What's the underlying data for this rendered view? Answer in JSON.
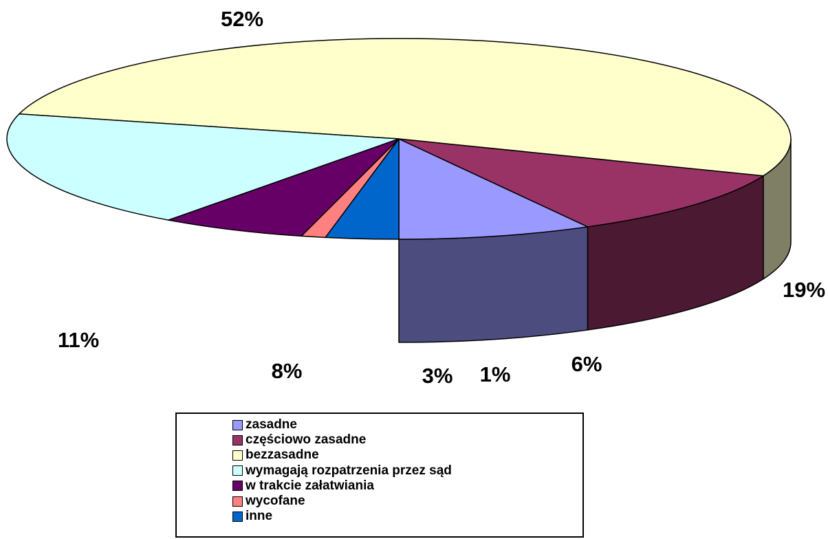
{
  "chart_data": {
    "type": "pie",
    "style": "3d",
    "start_angle_deg": 180,
    "slices": [
      {
        "label": "zasadne",
        "value": 8,
        "value_label": "8%",
        "color": "#9999FF",
        "side_color": "#4C4C7F"
      },
      {
        "label": "częściowo zasadne",
        "value": 11,
        "value_label": "11%",
        "color": "#993366",
        "side_color": "#4C1933"
      },
      {
        "label": "bezzasadne",
        "value": 52,
        "value_label": "52%",
        "color": "#FFFFCC",
        "side_color": "#7F7F66"
      },
      {
        "label": "wymagają rozpatrzenia przez sąd",
        "value": 19,
        "value_label": "19%",
        "color": "#CCFFFF",
        "side_color": "#667F7F"
      },
      {
        "label": "w trakcie załatwiania",
        "value": 6,
        "value_label": "6%",
        "color": "#660066",
        "side_color": "#330033"
      },
      {
        "label": "wycofane",
        "value": 1,
        "value_label": "1%",
        "color": "#FF8080",
        "side_color": "#7F4040"
      },
      {
        "label": "inne",
        "value": 3,
        "value_label": "3%",
        "color": "#0066CC",
        "side_color": "#003366"
      }
    ],
    "legend_position": "bottom"
  }
}
